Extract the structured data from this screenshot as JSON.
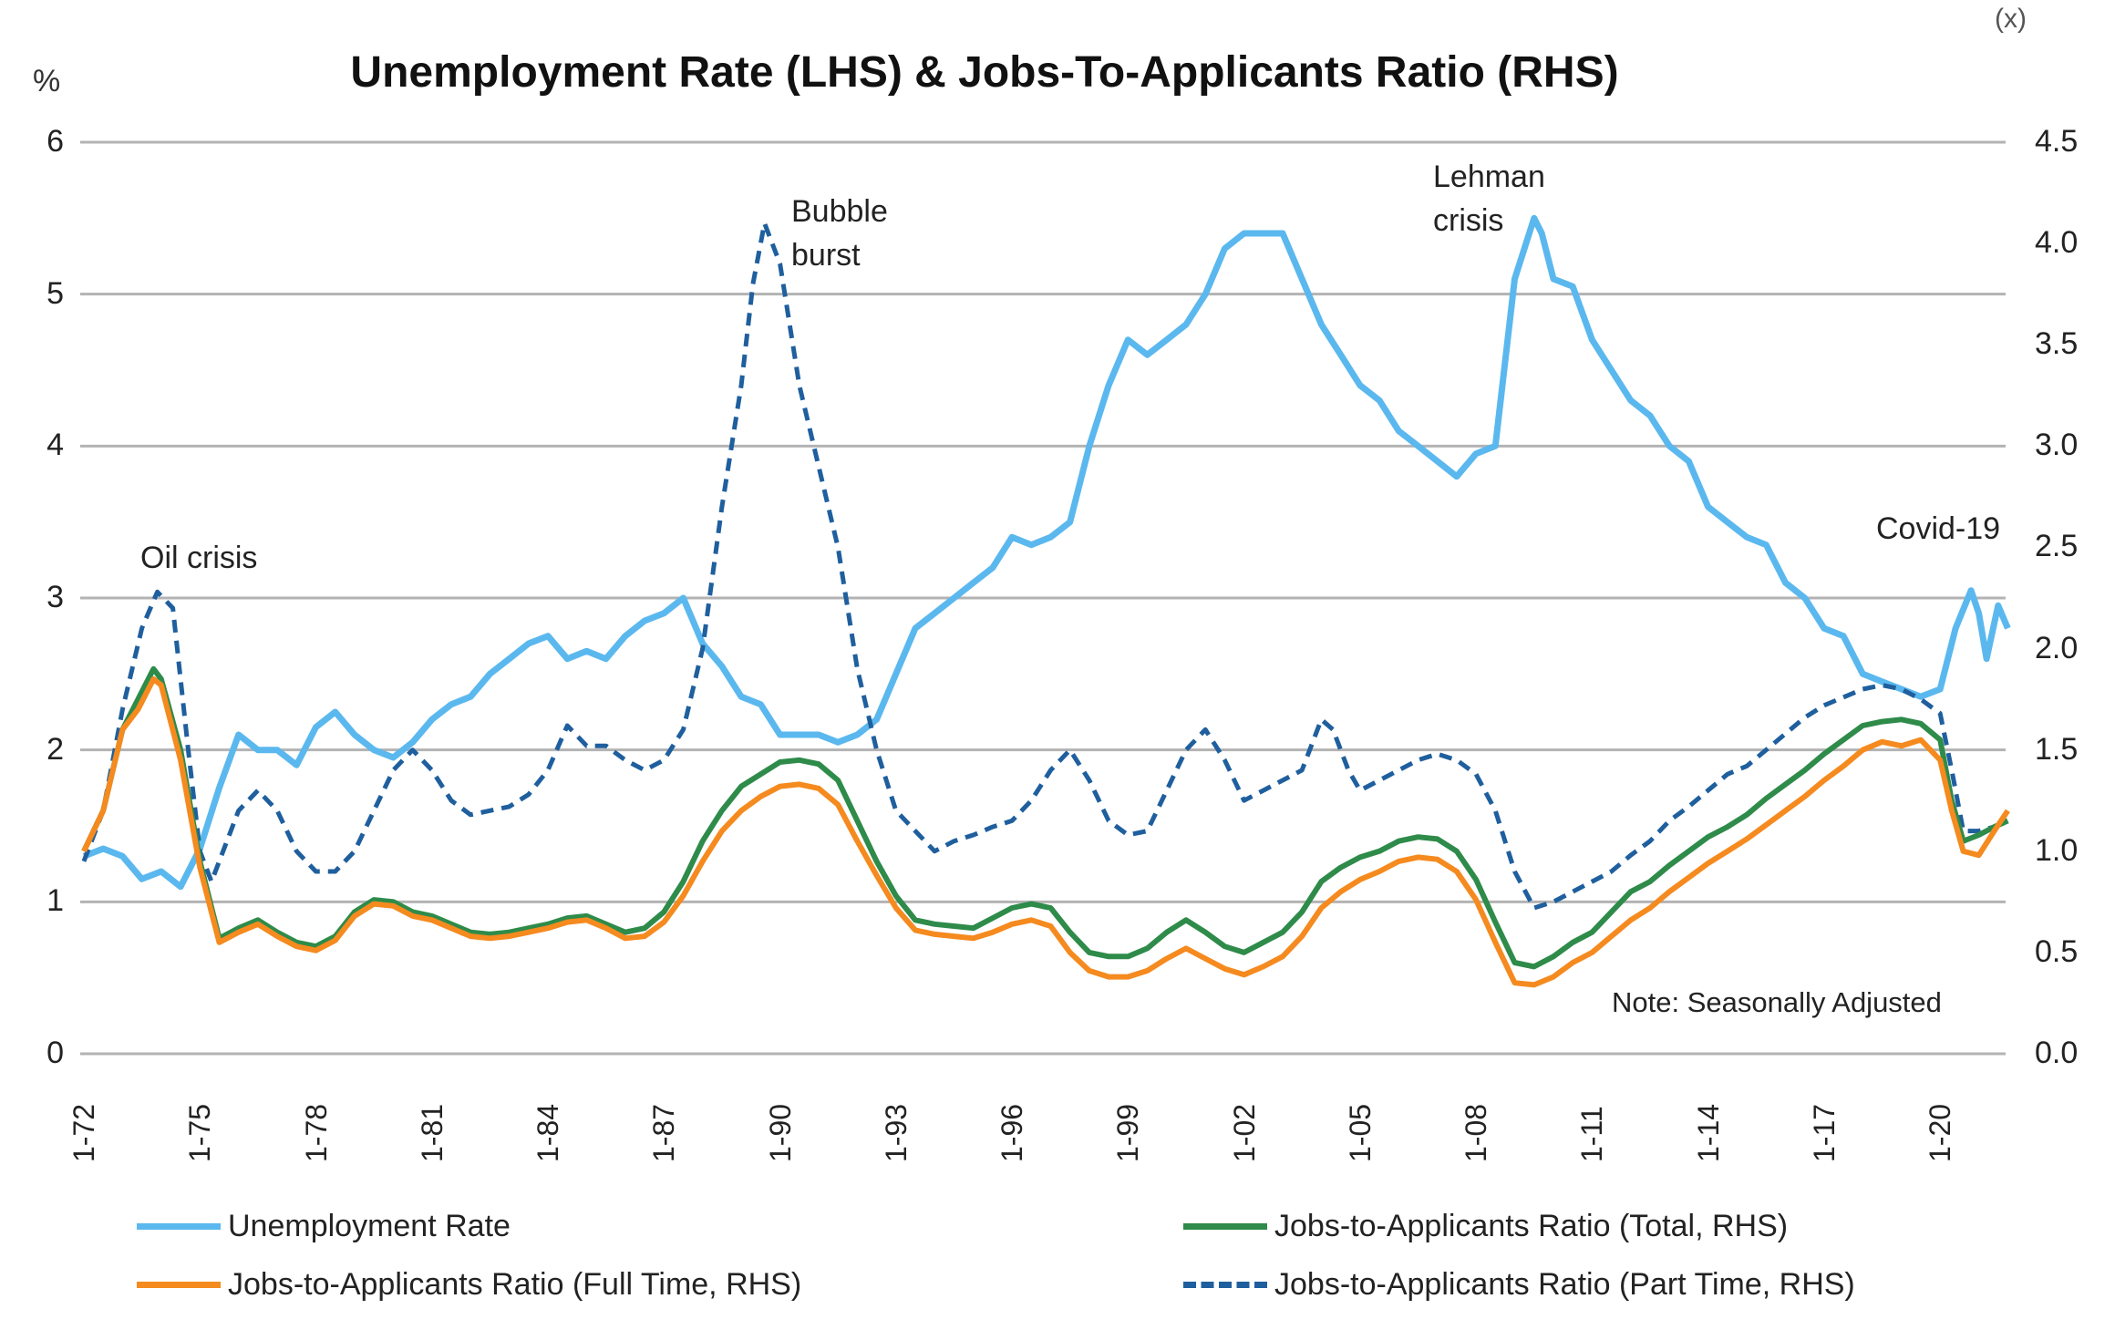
{
  "chart_data": {
    "type": "line",
    "title": "Unemployment Rate (LHS) & Jobs-To-Applicants Ratio (RHS)",
    "ylabel_left": "%",
    "ylabel_right": "(x)",
    "ylim_left": [
      0,
      6
    ],
    "ylim_right": [
      0,
      4.5
    ],
    "yticks_left": [
      "0",
      "1",
      "2",
      "3",
      "4",
      "5",
      "6"
    ],
    "yticks_right": [
      "0.0",
      "0.5",
      "1.0",
      "1.5",
      "2.0",
      "2.5",
      "3.0",
      "3.5",
      "4.0",
      "4.5"
    ],
    "xlim": [
      1972,
      2021.75
    ],
    "xticks": [
      {
        "label": "1-72",
        "x": 1972
      },
      {
        "label": "1-75",
        "x": 1975
      },
      {
        "label": "1-78",
        "x": 1978
      },
      {
        "label": "1-81",
        "x": 1981
      },
      {
        "label": "1-84",
        "x": 1984
      },
      {
        "label": "1-87",
        "x": 1987
      },
      {
        "label": "1-90",
        "x": 1990
      },
      {
        "label": "1-93",
        "x": 1993
      },
      {
        "label": "1-96",
        "x": 1996
      },
      {
        "label": "1-99",
        "x": 1999
      },
      {
        "label": "1-02",
        "x": 2002
      },
      {
        "label": "1-05",
        "x": 2005
      },
      {
        "label": "1-08",
        "x": 2008
      },
      {
        "label": "1-11",
        "x": 2011
      },
      {
        "label": "1-14",
        "x": 2014
      },
      {
        "label": "1-17",
        "x": 2017
      },
      {
        "label": "1-20",
        "x": 2020
      }
    ],
    "grid": true,
    "legend_position": "bottom",
    "annotations": [
      {
        "text": [
          "Oil crisis"
        ],
        "x": 1973.5
      },
      {
        "text": [
          "Bubble",
          "burst"
        ],
        "x": 1990
      },
      {
        "text": [
          "Lehman",
          "crisis"
        ],
        "x": 2009.5
      },
      {
        "text": [
          "Covid-19"
        ],
        "x": 2020.5
      },
      {
        "text": [
          "Note: Seasonally Adjusted"
        ],
        "x": 2015
      }
    ],
    "series": [
      {
        "name": "Unemployment Rate",
        "axis": "left",
        "color": "#5bb8ee",
        "style": "solid",
        "x": [
          1972,
          1972.5,
          1973,
          1973.5,
          1974,
          1974.5,
          1975,
          1975.5,
          1976,
          1976.5,
          1977,
          1977.5,
          1978,
          1978.5,
          1979,
          1979.5,
          1980,
          1980.5,
          1981,
          1981.5,
          1982,
          1982.5,
          1983,
          1983.5,
          1984,
          1984.5,
          1985,
          1985.5,
          1986,
          1986.5,
          1987,
          1987.5,
          1988,
          1988.5,
          1989,
          1989.5,
          1990,
          1990.5,
          1991,
          1991.5,
          1992,
          1992.5,
          1993,
          1993.5,
          1994,
          1994.5,
          1995,
          1995.5,
          1996,
          1996.5,
          1997,
          1997.5,
          1998,
          1998.5,
          1999,
          1999.5,
          2000,
          2000.5,
          2001,
          2001.5,
          2002,
          2002.5,
          2003,
          2003.5,
          2004,
          2004.5,
          2005,
          2005.5,
          2006,
          2006.5,
          2007,
          2007.5,
          2008,
          2008.5,
          2009,
          2009.5,
          2009.7,
          2010,
          2010.5,
          2011,
          2011.5,
          2012,
          2012.5,
          2013,
          2013.5,
          2014,
          2014.5,
          2015,
          2015.5,
          2016,
          2016.5,
          2017,
          2017.5,
          2018,
          2018.5,
          2019,
          2019.5,
          2020,
          2020.4,
          2020.8,
          2021,
          2021.2,
          2021.5,
          2021.75
        ],
        "values": [
          1.3,
          1.35,
          1.3,
          1.15,
          1.2,
          1.1,
          1.35,
          1.75,
          2.1,
          2.0,
          2.0,
          1.9,
          2.15,
          2.25,
          2.1,
          2.0,
          1.95,
          2.05,
          2.2,
          2.3,
          2.35,
          2.5,
          2.6,
          2.7,
          2.75,
          2.6,
          2.65,
          2.6,
          2.75,
          2.85,
          2.9,
          3.0,
          2.7,
          2.55,
          2.35,
          2.3,
          2.1,
          2.1,
          2.1,
          2.05,
          2.1,
          2.2,
          2.5,
          2.8,
          2.9,
          3.0,
          3.1,
          3.2,
          3.4,
          3.35,
          3.4,
          3.5,
          4.0,
          4.4,
          4.7,
          4.6,
          4.7,
          4.8,
          5.0,
          5.3,
          5.4,
          5.4,
          5.4,
          5.1,
          4.8,
          4.6,
          4.4,
          4.3,
          4.1,
          4.0,
          3.9,
          3.8,
          3.95,
          4.0,
          5.1,
          5.5,
          5.4,
          5.1,
          5.05,
          4.7,
          4.5,
          4.3,
          4.2,
          4.0,
          3.9,
          3.6,
          3.5,
          3.4,
          3.35,
          3.1,
          3.0,
          2.8,
          2.75,
          2.5,
          2.45,
          2.4,
          2.35,
          2.4,
          2.8,
          3.05,
          2.9,
          2.6,
          2.95,
          2.8
        ]
      },
      {
        "name": "Jobs-to-Applicants Ratio (Total, RHS)",
        "axis": "right",
        "color": "#2e8b4a",
        "style": "solid",
        "x": [
          1972,
          1972.5,
          1973,
          1973.4,
          1973.8,
          1974,
          1974.5,
          1975,
          1975.5,
          1976,
          1976.5,
          1977,
          1977.5,
          1978,
          1978.5,
          1979,
          1979.5,
          1980,
          1980.5,
          1981,
          1981.5,
          1982,
          1982.5,
          1983,
          1983.5,
          1984,
          1984.5,
          1985,
          1985.5,
          1986,
          1986.5,
          1987,
          1987.5,
          1988,
          1988.5,
          1989,
          1989.5,
          1990,
          1990.5,
          1991,
          1991.5,
          1992,
          1992.5,
          1993,
          1993.5,
          1994,
          1994.5,
          1995,
          1995.5,
          1996,
          1996.5,
          1997,
          1997.5,
          1998,
          1998.5,
          1999,
          1999.5,
          2000,
          2000.5,
          2001,
          2001.5,
          2002,
          2002.5,
          2003,
          2003.5,
          2004,
          2004.5,
          2005,
          2005.5,
          2006,
          2006.5,
          2007,
          2007.5,
          2008,
          2008.5,
          2009,
          2009.5,
          2010,
          2010.5,
          2011,
          2011.5,
          2012,
          2012.5,
          2013,
          2013.5,
          2014,
          2014.5,
          2015,
          2015.5,
          2016,
          2016.5,
          2017,
          2017.5,
          2018,
          2018.5,
          2019,
          2019.5,
          2020,
          2020.3,
          2020.6,
          2021,
          2021.4,
          2021.75
        ],
        "values": [
          1.0,
          1.2,
          1.6,
          1.75,
          1.9,
          1.85,
          1.5,
          0.95,
          0.57,
          0.62,
          0.66,
          0.6,
          0.55,
          0.53,
          0.58,
          0.7,
          0.76,
          0.75,
          0.7,
          0.68,
          0.64,
          0.6,
          0.59,
          0.6,
          0.62,
          0.64,
          0.67,
          0.68,
          0.64,
          0.6,
          0.62,
          0.7,
          0.85,
          1.05,
          1.2,
          1.32,
          1.38,
          1.44,
          1.45,
          1.43,
          1.35,
          1.15,
          0.95,
          0.78,
          0.66,
          0.64,
          0.63,
          0.62,
          0.67,
          0.72,
          0.74,
          0.72,
          0.6,
          0.5,
          0.48,
          0.48,
          0.52,
          0.6,
          0.66,
          0.6,
          0.53,
          0.5,
          0.55,
          0.6,
          0.7,
          0.85,
          0.92,
          0.97,
          1.0,
          1.05,
          1.07,
          1.06,
          1.0,
          0.86,
          0.65,
          0.45,
          0.43,
          0.48,
          0.55,
          0.6,
          0.7,
          0.8,
          0.85,
          0.93,
          1.0,
          1.07,
          1.12,
          1.18,
          1.26,
          1.33,
          1.4,
          1.48,
          1.55,
          1.62,
          1.64,
          1.65,
          1.63,
          1.55,
          1.25,
          1.05,
          1.08,
          1.12,
          1.15
        ]
      },
      {
        "name": "Jobs-to-Applicants Ratio (Full Time, RHS)",
        "axis": "right",
        "color": "#f58a1f",
        "style": "solid",
        "x": [
          1972,
          1972.5,
          1973,
          1973.4,
          1973.8,
          1974,
          1974.5,
          1975,
          1975.5,
          1976,
          1976.5,
          1977,
          1977.5,
          1978,
          1978.5,
          1979,
          1979.5,
          1980,
          1980.5,
          1981,
          1981.5,
          1982,
          1982.5,
          1983,
          1983.5,
          1984,
          1984.5,
          1985,
          1985.5,
          1986,
          1986.5,
          1987,
          1987.5,
          1988,
          1988.5,
          1989,
          1989.5,
          1990,
          1990.5,
          1991,
          1991.5,
          1992,
          1992.5,
          1993,
          1993.5,
          1994,
          1994.5,
          1995,
          1995.5,
          1996,
          1996.5,
          1997,
          1997.5,
          1998,
          1998.5,
          1999,
          1999.5,
          2000,
          2000.5,
          2001,
          2001.5,
          2002,
          2002.5,
          2003,
          2003.5,
          2004,
          2004.5,
          2005,
          2005.5,
          2006,
          2006.5,
          2007,
          2007.5,
          2008,
          2008.5,
          2009,
          2009.5,
          2010,
          2010.5,
          2011,
          2011.5,
          2012,
          2012.5,
          2013,
          2013.5,
          2014,
          2014.5,
          2015,
          2015.5,
          2016,
          2016.5,
          2017,
          2017.5,
          2018,
          2018.5,
          2019,
          2019.5,
          2020,
          2020.3,
          2020.6,
          2021,
          2021.4,
          2021.75
        ],
        "values": [
          1.0,
          1.2,
          1.6,
          1.7,
          1.85,
          1.82,
          1.45,
          0.92,
          0.55,
          0.6,
          0.64,
          0.58,
          0.53,
          0.51,
          0.56,
          0.68,
          0.74,
          0.73,
          0.68,
          0.66,
          0.62,
          0.58,
          0.57,
          0.58,
          0.6,
          0.62,
          0.65,
          0.66,
          0.62,
          0.57,
          0.58,
          0.65,
          0.78,
          0.95,
          1.1,
          1.2,
          1.27,
          1.32,
          1.33,
          1.31,
          1.23,
          1.05,
          0.88,
          0.72,
          0.61,
          0.59,
          0.58,
          0.57,
          0.6,
          0.64,
          0.66,
          0.63,
          0.5,
          0.41,
          0.38,
          0.38,
          0.41,
          0.47,
          0.52,
          0.47,
          0.42,
          0.39,
          0.43,
          0.48,
          0.58,
          0.72,
          0.8,
          0.86,
          0.9,
          0.95,
          0.97,
          0.96,
          0.9,
          0.76,
          0.55,
          0.35,
          0.34,
          0.38,
          0.45,
          0.5,
          0.58,
          0.66,
          0.72,
          0.8,
          0.87,
          0.94,
          1.0,
          1.06,
          1.13,
          1.2,
          1.27,
          1.35,
          1.42,
          1.5,
          1.54,
          1.52,
          1.55,
          1.45,
          1.2,
          1.0,
          0.98,
          1.1,
          1.2
        ]
      },
      {
        "name": "Jobs-to-Applicants Ratio (Part Time, RHS)",
        "axis": "right",
        "color": "#1f5f9e",
        "style": "dashed",
        "x": [
          1972,
          1972.5,
          1973,
          1973.5,
          1973.9,
          1974.3,
          1974.7,
          1975,
          1975.3,
          1975.6,
          1976,
          1976.5,
          1977,
          1977.5,
          1978,
          1978.5,
          1979,
          1979.5,
          1980,
          1980.5,
          1981,
          1981.5,
          1982,
          1982.5,
          1983,
          1983.5,
          1984,
          1984.5,
          1985,
          1985.5,
          1986,
          1986.5,
          1987,
          1987.5,
          1988,
          1988.5,
          1989,
          1989.3,
          1989.6,
          1990,
          1990.5,
          1991,
          1991.5,
          1992,
          1992.5,
          1993,
          1993.5,
          1994,
          1994.5,
          1995,
          1995.5,
          1996,
          1996.5,
          1997,
          1997.5,
          1998,
          1998.5,
          1999,
          1999.5,
          2000,
          2000.5,
          2001,
          2001.5,
          2002,
          2002.5,
          2003,
          2003.5,
          2004,
          2004.3,
          2004.7,
          2005,
          2005.5,
          2006,
          2006.5,
          2007,
          2007.5,
          2008,
          2008.5,
          2009,
          2009.5,
          2010,
          2010.5,
          2011,
          2011.5,
          2012,
          2012.5,
          2013,
          2013.5,
          2014,
          2014.5,
          2015,
          2015.5,
          2016,
          2016.5,
          2017,
          2017.5,
          2018,
          2018.5,
          2019,
          2019.5,
          2020,
          2020.3,
          2020.6,
          2021,
          2021.4,
          2021.75
        ],
        "values": [
          0.95,
          1.2,
          1.7,
          2.1,
          2.28,
          2.2,
          1.5,
          1.0,
          0.85,
          1.0,
          1.2,
          1.3,
          1.2,
          1.0,
          0.9,
          0.9,
          1.0,
          1.2,
          1.4,
          1.5,
          1.4,
          1.25,
          1.18,
          1.2,
          1.22,
          1.28,
          1.4,
          1.62,
          1.52,
          1.52,
          1.45,
          1.4,
          1.45,
          1.6,
          2.0,
          2.7,
          3.3,
          3.8,
          4.1,
          3.9,
          3.3,
          2.9,
          2.5,
          1.9,
          1.5,
          1.2,
          1.1,
          1.0,
          1.05,
          1.08,
          1.12,
          1.15,
          1.25,
          1.4,
          1.5,
          1.35,
          1.15,
          1.08,
          1.1,
          1.3,
          1.5,
          1.6,
          1.45,
          1.25,
          1.3,
          1.35,
          1.4,
          1.65,
          1.6,
          1.4,
          1.3,
          1.35,
          1.4,
          1.45,
          1.48,
          1.45,
          1.38,
          1.2,
          0.9,
          0.72,
          0.75,
          0.8,
          0.85,
          0.9,
          0.98,
          1.05,
          1.15,
          1.22,
          1.3,
          1.38,
          1.42,
          1.5,
          1.58,
          1.66,
          1.72,
          1.76,
          1.8,
          1.82,
          1.8,
          1.75,
          1.68,
          1.4,
          1.1,
          1.1,
          1.12,
          1.15
        ]
      }
    ]
  }
}
